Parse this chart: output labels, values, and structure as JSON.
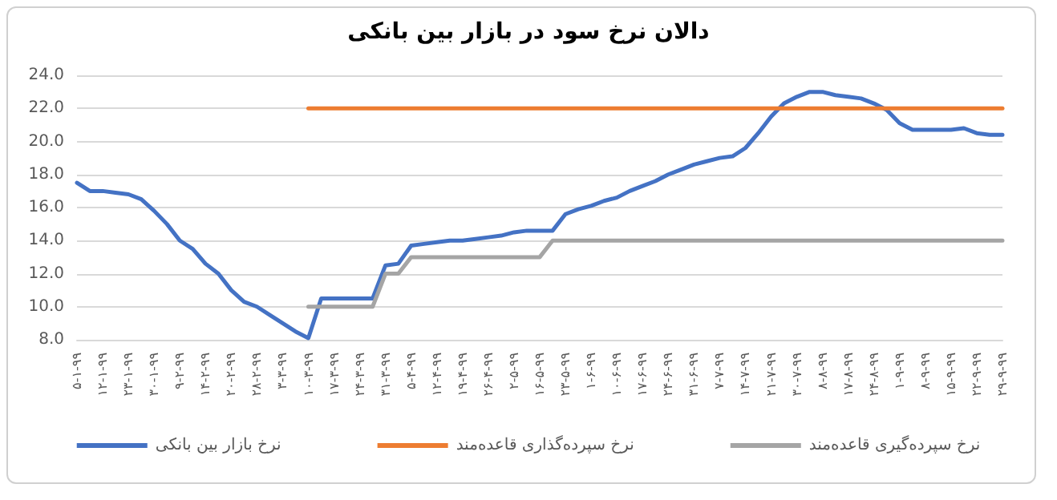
{
  "chart_data": {
    "type": "line",
    "title": "دالان نرخ سود در بازار بین بانکی",
    "categories": [
      "۵-۱-۹۹",
      null,
      "۱۲-۱-۹۹",
      null,
      "۲۳-۱-۹۹",
      null,
      "۳۰-۱-۹۹",
      null,
      "۹-۲-۹۹",
      null,
      "۱۴-۲-۹۹",
      null,
      "۲۰-۲-۹۹",
      null,
      "۲۸-۲-۹۹",
      null,
      "۳-۳-۹۹",
      null,
      "۱۰-۳-۹۹",
      null,
      "۱۷-۳-۹۹",
      null,
      "۲۴-۳-۹۹",
      null,
      "۳۱-۳-۹۹",
      null,
      "۵-۴-۹۹",
      null,
      "۱۲-۴-۹۹",
      null,
      "۱۹-۴-۹۹",
      null,
      "۲۶-۴-۹۹",
      null,
      "۲-۵-۹۹",
      null,
      "۱۶-۵-۹۹",
      null,
      "۲۳-۵-۹۹",
      null,
      "۱-۶-۹۹",
      null,
      "۱۰-۶-۹۹",
      null,
      "۱۷-۶-۹۹",
      null,
      "۲۴-۶-۹۹",
      null,
      "۳۱-۶-۹۹",
      null,
      "۷-۷-۹۹",
      null,
      "۱۴-۷-۹۹",
      null,
      "۲۱-۷-۹۹",
      null,
      "۳۰-۷-۹۹",
      null,
      "۸-۸-۹۹",
      null,
      "۱۷-۸-۹۹",
      null,
      "۲۴-۸-۹۹",
      null,
      "۱-۹-۹۹",
      null,
      "۸-۹-۹۹",
      null,
      "۱۵-۹-۹۹",
      null,
      "۲۲-۹-۹۹",
      null,
      "۲۹-۹-۹۹"
    ],
    "series": [
      {
        "name": "نرخ بازار بین بانکی",
        "color": "#4472c4",
        "values": [
          17.5,
          17.0,
          17.0,
          16.9,
          16.8,
          16.5,
          15.8,
          15.0,
          14.0,
          13.5,
          12.6,
          12.0,
          11.0,
          10.3,
          10.0,
          9.5,
          9.0,
          8.5,
          8.1,
          10.5,
          10.5,
          10.5,
          10.5,
          10.5,
          12.5,
          12.6,
          13.7,
          13.8,
          13.9,
          14.0,
          14.0,
          14.1,
          14.2,
          14.3,
          14.5,
          14.6,
          14.6,
          14.6,
          15.6,
          15.9,
          16.1,
          16.4,
          16.6,
          17.0,
          17.3,
          17.6,
          18.0,
          18.3,
          18.6,
          18.8,
          19.0,
          19.1,
          19.6,
          20.5,
          21.5,
          22.3,
          22.7,
          23.0,
          23.0,
          22.8,
          22.7,
          22.6,
          22.3,
          21.9,
          21.1,
          20.7,
          20.7,
          20.7,
          20.7,
          20.8,
          20.5,
          20.4,
          20.4
        ]
      },
      {
        "name": "نرخ سپرده‌گذاری قاعده‌مند",
        "color": "#ed7d31",
        "values": [
          null,
          null,
          null,
          null,
          null,
          null,
          null,
          null,
          null,
          null,
          null,
          null,
          null,
          null,
          null,
          null,
          null,
          null,
          22,
          22,
          22,
          22,
          22,
          22,
          22,
          22,
          22,
          22,
          22,
          22,
          22,
          22,
          22,
          22,
          22,
          22,
          22,
          22,
          22,
          22,
          22,
          22,
          22,
          22,
          22,
          22,
          22,
          22,
          22,
          22,
          22,
          22,
          22,
          22,
          22,
          22,
          22,
          22,
          22,
          22,
          22,
          22,
          22,
          22,
          22,
          22,
          22,
          22,
          22,
          22,
          22,
          22,
          22
        ]
      },
      {
        "name": "نرخ سپرده‌گیری قاعده‌مند",
        "color": "#a5a5a5",
        "values": [
          null,
          null,
          null,
          null,
          null,
          null,
          null,
          null,
          null,
          null,
          null,
          null,
          null,
          null,
          null,
          null,
          null,
          null,
          10,
          10,
          10,
          10,
          10,
          10,
          12,
          12,
          13,
          13,
          13,
          13,
          13,
          13,
          13,
          13,
          13,
          13,
          13,
          14,
          14,
          14,
          14,
          14,
          14,
          14,
          14,
          14,
          14,
          14,
          14,
          14,
          14,
          14,
          14,
          14,
          14,
          14,
          14,
          14,
          14,
          14,
          14,
          14,
          14,
          14,
          14,
          14,
          14,
          14,
          14,
          14,
          14,
          14,
          14
        ]
      }
    ],
    "ylim": [
      8,
      24
    ],
    "yticks": [
      {
        "value": 8,
        "label": "8.0"
      },
      {
        "value": 10,
        "label": "10.0"
      },
      {
        "value": 12,
        "label": "12.0"
      },
      {
        "value": 14,
        "label": "14.0"
      },
      {
        "value": 16,
        "label": "16.0"
      },
      {
        "value": 18,
        "label": "18.0"
      },
      {
        "value": 20,
        "label": "20.0"
      },
      {
        "value": 22,
        "label": "22.0"
      },
      {
        "value": 24,
        "label": "24.0"
      }
    ],
    "grid": "y",
    "legend": "bottom",
    "marker": "none",
    "line_style": "solid"
  }
}
